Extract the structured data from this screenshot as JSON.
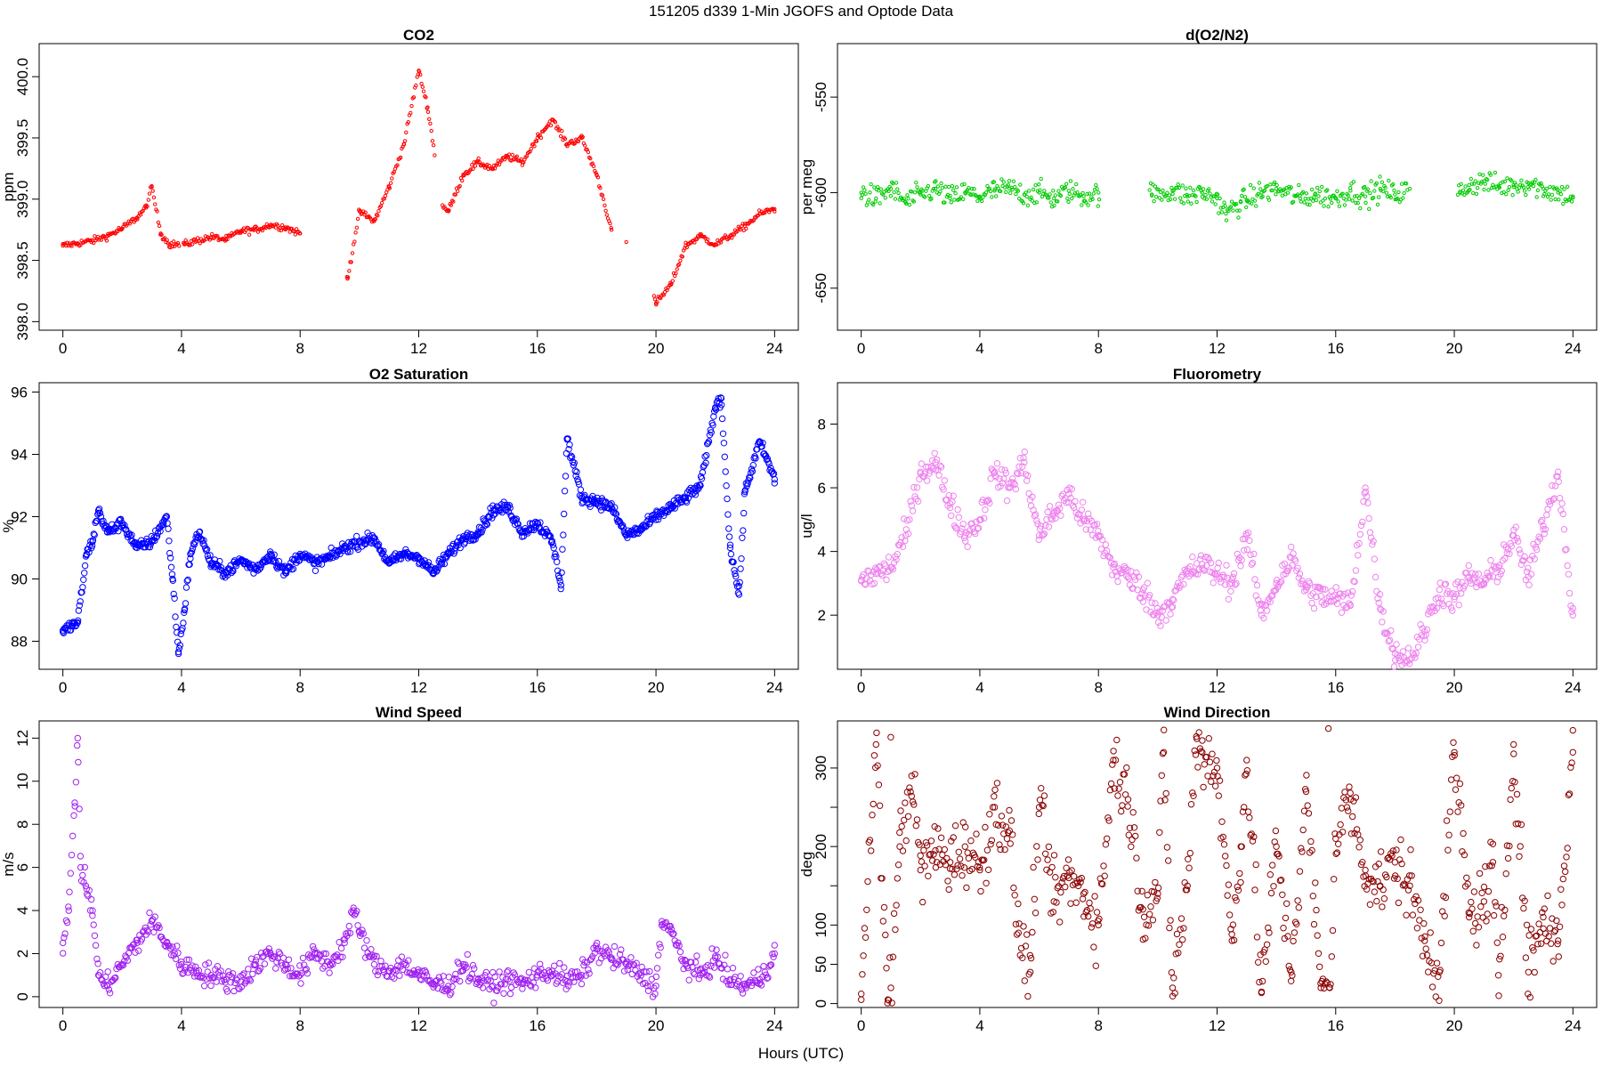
{
  "figure": {
    "title": "151205   d339   1-Min  JGOFS and Optode Data",
    "xlabel": "Hours (UTC)"
  },
  "chart_data": [
    {
      "type": "scatter",
      "title": "CO2",
      "xlabel": "",
      "ylabel": "ppm",
      "xlim": [
        -0.8,
        24.8
      ],
      "ylim": [
        397.93,
        400.27
      ],
      "xticks": [
        0,
        4,
        8,
        12,
        16,
        20,
        24
      ],
      "yticks": [
        398.0,
        398.5,
        399.0,
        399.5,
        400.0
      ],
      "ytick_labels": [
        "398.0",
        "398.5",
        "399.0",
        "399.5",
        "400.0"
      ],
      "rotate_y_ticks": true,
      "marker_color": "#ff0000",
      "marker_size": 1.7,
      "series": [
        {
          "x": [
            0.0,
            0.5,
            1.0,
            1.5,
            2.0,
            2.5,
            2.8,
            3.0,
            3.3,
            3.6,
            4.1,
            4.5,
            5.0,
            5.5,
            6.0,
            6.5,
            7.0,
            7.5,
            8.0,
            9.6,
            10.0,
            10.5,
            11.0,
            11.5,
            12.0,
            12.3,
            12.8,
            13.0,
            13.5,
            14.0,
            14.5,
            15.0,
            15.5,
            16.0,
            16.5,
            17.0,
            17.5,
            18.0,
            18.5,
            19.0,
            20.0,
            20.5,
            21.0,
            21.5,
            22.0,
            22.5,
            23.0,
            23.5,
            24.0
          ],
          "y": [
            398.62,
            398.64,
            398.66,
            398.7,
            398.76,
            398.85,
            398.93,
            399.1,
            398.72,
            398.63,
            398.63,
            398.66,
            398.69,
            398.67,
            398.74,
            398.75,
            398.79,
            398.77,
            398.72,
            398.35,
            398.9,
            398.82,
            399.1,
            399.45,
            400.05,
            399.75,
            398.95,
            398.9,
            399.2,
            399.3,
            399.25,
            399.35,
            399.3,
            399.5,
            399.65,
            399.45,
            399.5,
            399.2,
            398.75,
            398.65,
            398.15,
            398.3,
            398.62,
            398.7,
            398.63,
            398.7,
            398.78,
            398.88,
            398.92
          ]
        }
      ]
    },
    {
      "type": "scatter",
      "title": "d(O2/N2)",
      "xlabel": "",
      "ylabel": "per meg",
      "xlim": [
        -0.8,
        24.8
      ],
      "ylim": [
        -672,
        -522
      ],
      "xticks": [
        0,
        4,
        8,
        12,
        16,
        20,
        24
      ],
      "yticks": [
        -650,
        -600,
        -550
      ],
      "ytick_labels": [
        "-650",
        "-600",
        "-550"
      ],
      "rotate_y_ticks": true,
      "marker_color": "#00cc00",
      "marker_size": 1.7,
      "series": [
        {
          "x": [
            0.0,
            0.5,
            1.0,
            1.5,
            2.0,
            2.5,
            3.0,
            3.5,
            4.0,
            4.5,
            5.0,
            5.5,
            6.0,
            6.5,
            7.0,
            7.5,
            8.0,
            9.8,
            10.5,
            11.0,
            11.5,
            12.0,
            12.3,
            12.8,
            13.0,
            13.5,
            14.0,
            14.8,
            15.3,
            16.0,
            16.5,
            17.0,
            17.5,
            18.0,
            18.5,
            20.2,
            20.5,
            21.0,
            21.5,
            22.0,
            22.5,
            23.0,
            23.5,
            24.0
          ],
          "y": [
            -600,
            -603,
            -598,
            -605,
            -601,
            -598,
            -603,
            -600,
            -602,
            -599,
            -598,
            -601,
            -600,
            -603,
            -599,
            -602,
            -600,
            -601,
            -599,
            -602,
            -600,
            -603,
            -611,
            -605,
            -604,
            -600,
            -598,
            -603,
            -601,
            -603,
            -599,
            -602,
            -598,
            -601,
            -598,
            -600,
            -596,
            -594,
            -597,
            -596,
            -595,
            -598,
            -600,
            -602
          ]
        }
      ]
    },
    {
      "type": "scatter",
      "title": "O2 Saturation",
      "xlabel": "",
      "ylabel": "%",
      "xlim": [
        -0.8,
        24.8
      ],
      "ylim": [
        87.1,
        96.3
      ],
      "xticks": [
        0,
        4,
        8,
        12,
        16,
        20,
        24
      ],
      "yticks": [
        88,
        90,
        92,
        94,
        96
      ],
      "ytick_labels": [
        "88",
        "90",
        "92",
        "94",
        "96"
      ],
      "rotate_y_ticks": false,
      "marker_color": "#0000ff",
      "marker_size": 3.2,
      "series": [
        {
          "x": [
            0.0,
            0.3,
            0.5,
            0.8,
            1.0,
            1.2,
            1.5,
            2.0,
            2.5,
            3.0,
            3.5,
            3.7,
            3.9,
            4.1,
            4.3,
            4.6,
            5.0,
            5.5,
            6.0,
            6.5,
            7.0,
            7.5,
            8.0,
            8.5,
            9.0,
            9.5,
            10.0,
            10.5,
            11.0,
            11.5,
            12.0,
            12.5,
            13.0,
            13.5,
            14.0,
            14.5,
            15.0,
            15.5,
            16.0,
            16.5,
            16.8,
            17.0,
            17.5,
            18.0,
            18.5,
            19.0,
            19.5,
            20.0,
            20.5,
            21.0,
            21.5,
            22.0,
            22.2,
            22.5,
            22.8,
            23.0,
            23.5,
            24.0
          ],
          "y": [
            88.3,
            88.5,
            88.6,
            90.8,
            91.2,
            92.2,
            91.5,
            91.8,
            91.0,
            91.2,
            92.0,
            90.0,
            87.6,
            89.0,
            90.8,
            91.5,
            90.5,
            90.2,
            90.6,
            90.3,
            90.8,
            90.2,
            90.8,
            90.5,
            90.7,
            91.0,
            91.2,
            91.3,
            90.5,
            90.8,
            90.7,
            90.2,
            90.8,
            91.3,
            91.5,
            92.2,
            92.3,
            91.5,
            91.8,
            91.2,
            89.8,
            94.5,
            92.6,
            92.5,
            92.3,
            91.4,
            91.6,
            92.0,
            92.3,
            92.6,
            93.0,
            95.5,
            95.8,
            91.0,
            89.5,
            92.8,
            94.4,
            93.2
          ]
        }
      ]
    },
    {
      "type": "scatter",
      "title": "Fluorometry",
      "xlabel": "",
      "ylabel": "ug/l",
      "xlim": [
        -0.8,
        24.8
      ],
      "ylim": [
        0.3,
        9.3
      ],
      "xticks": [
        0,
        4,
        8,
        12,
        16,
        20,
        24
      ],
      "yticks": [
        2,
        4,
        6,
        8
      ],
      "ytick_labels": [
        "2",
        "4",
        "6",
        "8"
      ],
      "rotate_y_ticks": false,
      "marker_color": "#ee82ee",
      "marker_size": 3.2,
      "series": [
        {
          "x": [
            0.0,
            0.5,
            1.0,
            1.5,
            2.0,
            2.5,
            3.0,
            3.5,
            4.0,
            4.5,
            5.0,
            5.5,
            6.0,
            6.5,
            7.0,
            7.5,
            8.0,
            8.5,
            9.0,
            9.5,
            10.0,
            10.5,
            11.0,
            11.5,
            12.0,
            12.5,
            13.0,
            13.5,
            14.0,
            14.5,
            15.0,
            15.5,
            16.0,
            16.5,
            17.0,
            17.5,
            18.0,
            18.5,
            19.0,
            19.5,
            20.0,
            20.5,
            21.0,
            21.5,
            22.0,
            22.5,
            23.0,
            23.5,
            24.0
          ],
          "y": [
            3.1,
            3.3,
            3.5,
            4.5,
            6.5,
            6.8,
            5.5,
            4.5,
            5.0,
            6.5,
            6.0,
            6.8,
            4.5,
            5.2,
            5.8,
            5.0,
            4.5,
            3.5,
            3.2,
            2.8,
            2.0,
            2.5,
            3.3,
            3.6,
            3.3,
            3.0,
            4.5,
            2.0,
            3.0,
            3.8,
            2.8,
            2.6,
            2.5,
            2.3,
            6.0,
            2.2,
            0.8,
            0.6,
            1.5,
            2.8,
            2.5,
            3.2,
            3.0,
            3.5,
            4.5,
            3.2,
            4.8,
            6.5,
            2.0
          ]
        }
      ]
    },
    {
      "type": "scatter",
      "title": "Wind Speed",
      "xlabel": "",
      "ylabel": "m/s",
      "xlim": [
        -0.8,
        24.8
      ],
      "ylim": [
        -0.5,
        12.8
      ],
      "xticks": [
        0,
        4,
        8,
        12,
        16,
        20,
        24
      ],
      "yticks": [
        0,
        2,
        4,
        6,
        8,
        10,
        12
      ],
      "ytick_labels": [
        "0",
        "2",
        "4",
        "6",
        "8",
        "10",
        "12"
      ],
      "rotate_y_ticks": true,
      "marker_color": "#a020f0",
      "marker_size": 3.2,
      "series": [
        {
          "x": [
            0.0,
            0.2,
            0.4,
            0.5,
            0.6,
            0.8,
            1.0,
            1.2,
            1.5,
            2.0,
            2.5,
            3.0,
            3.5,
            4.0,
            4.5,
            5.0,
            5.5,
            6.0,
            6.5,
            7.0,
            7.5,
            8.0,
            8.5,
            9.0,
            9.5,
            9.8,
            10.0,
            10.5,
            11.0,
            11.5,
            12.0,
            12.5,
            13.0,
            13.5,
            14.0,
            14.5,
            15.0,
            15.5,
            16.0,
            16.5,
            17.0,
            17.5,
            18.0,
            18.5,
            19.0,
            19.5,
            20.0,
            20.2,
            20.5,
            21.0,
            21.5,
            22.0,
            22.5,
            23.0,
            23.5,
            24.0
          ],
          "y": [
            2.5,
            4.0,
            9.0,
            12.0,
            6.0,
            5.0,
            4.0,
            1.0,
            0.5,
            1.5,
            2.5,
            3.5,
            2.5,
            1.5,
            1.2,
            1.0,
            0.8,
            0.7,
            1.5,
            2.0,
            1.5,
            1.0,
            2.0,
            1.5,
            2.5,
            4.0,
            3.0,
            1.5,
            1.2,
            1.5,
            1.0,
            0.6,
            0.5,
            1.5,
            0.8,
            0.5,
            0.8,
            0.6,
            1.0,
            1.2,
            0.7,
            1.0,
            2.2,
            1.8,
            1.5,
            1.0,
            0.5,
            3.5,
            3.0,
            1.5,
            1.0,
            1.8,
            0.8,
            0.5,
            0.8,
            2.0
          ]
        }
      ]
    },
    {
      "type": "scatter",
      "title": "Wind Direction",
      "xlabel": "",
      "ylabel": "deg",
      "xlim": [
        -0.8,
        24.8
      ],
      "ylim": [
        -5,
        360
      ],
      "xticks": [
        0,
        4,
        8,
        12,
        16,
        20,
        24
      ],
      "yticks": [
        0,
        50,
        100,
        200,
        300
      ],
      "ytick_labels": [
        "0",
        "50",
        "100",
        "200",
        "300"
      ],
      "minor_yticks": [
        150,
        250
      ],
      "rotate_y_ticks": true,
      "marker_color": "#8b0000",
      "marker_size": 3.2,
      "series": [
        {
          "x": [
            0.0,
            0.5,
            0.9,
            1.0,
            1.3,
            1.7,
            2.0,
            2.5,
            3.0,
            3.5,
            4.0,
            4.5,
            5.0,
            5.3,
            5.7,
            6.0,
            6.5,
            7.0,
            7.5,
            8.0,
            8.5,
            9.0,
            9.5,
            10.0,
            10.2,
            10.5,
            11.0,
            11.3,
            11.5,
            12.0,
            12.5,
            12.8,
            13.0,
            13.5,
            14.0,
            14.5,
            15.0,
            15.5,
            15.8,
            16.0,
            16.5,
            17.0,
            17.5,
            18.0,
            18.5,
            19.0,
            19.5,
            20.0,
            20.5,
            21.0,
            21.3,
            21.5,
            22.0,
            22.5,
            23.0,
            23.5,
            24.0
          ],
          "y": [
            5,
            330,
            5,
            20,
            200,
            290,
            170,
            195,
            180,
            200,
            170,
            250,
            220,
            90,
            40,
            250,
            130,
            160,
            140,
            100,
            310,
            260,
            120,
            140,
            320,
            20,
            150,
            340,
            320,
            300,
            80,
            200,
            310,
            15,
            200,
            40,
            270,
            20,
            20,
            210,
            260,
            170,
            150,
            180,
            150,
            80,
            40,
            320,
            110,
            130,
            180,
            10,
            330,
            40,
            110,
            80,
            320
          ]
        }
      ]
    }
  ]
}
